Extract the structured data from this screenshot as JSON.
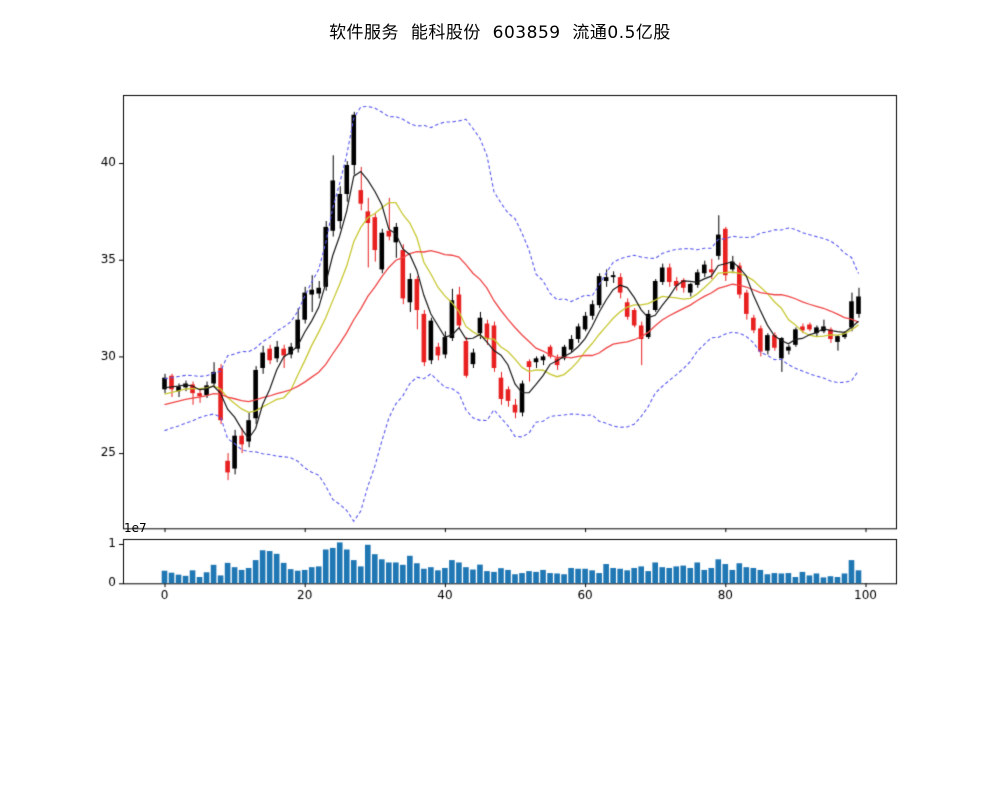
{
  "page": {
    "background": "#ffffff"
  },
  "chart_data": {
    "type": "candlestick+volume",
    "title": "软件服务  能科股份  603859  流通0.5亿股",
    "title_parts": {
      "industry": "软件服务",
      "name": "能科股份",
      "code": "603859",
      "float_shares": "流通0.5亿股"
    },
    "x_description": "trading-day index, 0 to 99",
    "ohlc": [
      [
        28.3,
        29.1,
        28.1,
        28.9
      ],
      [
        29.0,
        29.1,
        27.9,
        28.3
      ],
      [
        28.2,
        28.6,
        27.9,
        28.45
      ],
      [
        28.4,
        28.75,
        28.2,
        28.6
      ],
      [
        28.55,
        28.7,
        27.5,
        28.1
      ],
      [
        28.1,
        28.3,
        27.6,
        27.95
      ],
      [
        28.0,
        28.7,
        27.85,
        28.5
      ],
      [
        28.6,
        29.7,
        28.4,
        29.2
      ],
      [
        29.4,
        29.6,
        26.5,
        26.7
      ],
      [
        24.6,
        25.0,
        23.6,
        24.0
      ],
      [
        24.2,
        26.2,
        23.9,
        25.9
      ],
      [
        25.9,
        26.3,
        25.0,
        25.45
      ],
      [
        25.6,
        27.1,
        25.3,
        26.7
      ],
      [
        26.8,
        29.5,
        26.5,
        29.3
      ],
      [
        29.4,
        30.55,
        29.1,
        30.2
      ],
      [
        30.4,
        30.6,
        29.6,
        29.8
      ],
      [
        29.9,
        30.8,
        29.7,
        30.5
      ],
      [
        30.4,
        30.6,
        29.4,
        30.05
      ],
      [
        30.1,
        30.7,
        29.9,
        30.5
      ],
      [
        30.4,
        32.5,
        30.2,
        31.9
      ],
      [
        31.9,
        33.6,
        31.7,
        33.3
      ],
      [
        33.2,
        34.2,
        32.3,
        33.45
      ],
      [
        33.25,
        33.9,
        33.0,
        33.55
      ],
      [
        33.6,
        37.0,
        33.4,
        36.7
      ],
      [
        36.5,
        40.4,
        36.2,
        39.1
      ],
      [
        37.0,
        38.8,
        36.6,
        38.4
      ],
      [
        38.4,
        40.1,
        38.0,
        39.9
      ],
      [
        39.9,
        42.65,
        39.4,
        42.5
      ],
      [
        38.6,
        39.8,
        37.55,
        37.9
      ],
      [
        37.5,
        38.2,
        34.6,
        36.9
      ],
      [
        37.2,
        37.4,
        34.9,
        35.5
      ],
      [
        34.5,
        36.6,
        34.3,
        36.4
      ],
      [
        36.5,
        38.2,
        36.0,
        36.2
      ],
      [
        35.9,
        36.9,
        35.1,
        36.7
      ],
      [
        35.5,
        35.8,
        32.7,
        33.0
      ],
      [
        32.8,
        34.3,
        32.3,
        34.0
      ],
      [
        34.0,
        34.15,
        31.4,
        32.4
      ],
      [
        32.2,
        32.4,
        29.5,
        29.7
      ],
      [
        29.8,
        32.0,
        29.6,
        31.85
      ],
      [
        30.5,
        30.7,
        29.8,
        30.05
      ],
      [
        30.1,
        31.3,
        29.9,
        31.0
      ],
      [
        30.95,
        33.5,
        30.8,
        32.9
      ],
      [
        33.2,
        33.6,
        31.4,
        31.6
      ],
      [
        30.8,
        31.0,
        28.9,
        29.0
      ],
      [
        29.6,
        30.4,
        29.4,
        30.2
      ],
      [
        31.2,
        32.3,
        30.9,
        32.0
      ],
      [
        31.7,
        31.9,
        30.6,
        30.9
      ],
      [
        31.6,
        31.8,
        29.2,
        29.4
      ],
      [
        28.9,
        29.2,
        27.5,
        27.8
      ],
      [
        28.3,
        28.45,
        27.4,
        27.7
      ],
      [
        27.5,
        27.8,
        26.8,
        27.1
      ],
      [
        27.1,
        28.75,
        26.9,
        28.6
      ],
      [
        29.75,
        29.85,
        28.7,
        29.45
      ],
      [
        29.7,
        30.0,
        29.4,
        29.9
      ],
      [
        29.8,
        30.1,
        29.55,
        30.0
      ],
      [
        30.5,
        30.6,
        29.9,
        30.0
      ],
      [
        29.9,
        30.1,
        29.3,
        29.55
      ],
      [
        29.9,
        30.6,
        29.8,
        30.5
      ],
      [
        30.35,
        31.1,
        30.2,
        30.9
      ],
      [
        30.9,
        31.7,
        30.7,
        31.55
      ],
      [
        31.4,
        32.3,
        31.3,
        32.1
      ],
      [
        32.1,
        32.9,
        31.9,
        32.7
      ],
      [
        32.65,
        34.3,
        32.5,
        34.15
      ],
      [
        33.9,
        34.5,
        33.6,
        34.1
      ],
      [
        34.1,
        34.4,
        33.8,
        34.2
      ],
      [
        34.1,
        34.3,
        33.0,
        33.3
      ],
      [
        32.8,
        33.0,
        31.9,
        32.05
      ],
      [
        32.4,
        32.5,
        31.5,
        31.6
      ],
      [
        31.6,
        31.8,
        29.55,
        30.9
      ],
      [
        31.0,
        32.4,
        30.9,
        32.2
      ],
      [
        32.4,
        34.0,
        32.3,
        33.9
      ],
      [
        33.85,
        34.8,
        33.7,
        34.6
      ],
      [
        34.6,
        34.8,
        33.6,
        33.85
      ],
      [
        33.9,
        34.1,
        33.4,
        33.65
      ],
      [
        33.95,
        34.05,
        33.3,
        33.55
      ],
      [
        33.3,
        33.8,
        33.1,
        33.75
      ],
      [
        33.7,
        34.5,
        33.55,
        34.35
      ],
      [
        34.3,
        34.95,
        34.1,
        34.75
      ],
      [
        34.5,
        35.05,
        34.0,
        34.35
      ],
      [
        35.2,
        37.3,
        35.0,
        36.3
      ],
      [
        36.6,
        36.7,
        33.9,
        34.2
      ],
      [
        34.5,
        35.2,
        34.3,
        34.9
      ],
      [
        34.7,
        34.85,
        33.0,
        33.2
      ],
      [
        33.3,
        33.45,
        31.9,
        32.2
      ],
      [
        32.0,
        32.15,
        31.2,
        31.35
      ],
      [
        31.45,
        31.6,
        30.0,
        30.25
      ],
      [
        30.3,
        31.2,
        30.1,
        31.1
      ],
      [
        31.1,
        31.25,
        30.3,
        30.45
      ],
      [
        29.9,
        31.0,
        29.2,
        30.95
      ],
      [
        30.3,
        30.6,
        30.1,
        30.5
      ],
      [
        30.6,
        31.5,
        30.5,
        31.4
      ],
      [
        31.55,
        31.7,
        31.2,
        31.35
      ],
      [
        31.65,
        31.75,
        31.3,
        31.4
      ],
      [
        31.2,
        31.6,
        31.0,
        31.5
      ],
      [
        31.3,
        31.9,
        31.2,
        31.55
      ],
      [
        31.4,
        31.5,
        30.7,
        30.9
      ],
      [
        30.75,
        31.1,
        30.3,
        31.05
      ],
      [
        31.0,
        31.3,
        30.9,
        31.2
      ],
      [
        31.5,
        33.3,
        31.3,
        32.85
      ],
      [
        32.2,
        33.55,
        32.0,
        33.1
      ]
    ],
    "volume_unit_scale": 1000000,
    "volume": [
      3.2,
      2.7,
      2.2,
      1.9,
      3.3,
      1.6,
      2.8,
      4.7,
      2.0,
      5.2,
      4.1,
      3.4,
      3.9,
      5.9,
      8.4,
      8.2,
      7.5,
      5.2,
      3.6,
      3.2,
      3.4,
      4.1,
      4.3,
      8.6,
      9.0,
      10.4,
      8.6,
      5.9,
      4.3,
      9.8,
      7.4,
      6.1,
      5.3,
      5.3,
      4.7,
      7.0,
      5.1,
      3.7,
      4.1,
      3.3,
      3.9,
      5.9,
      5.3,
      4.1,
      3.5,
      4.75,
      3.1,
      2.9,
      3.85,
      3.4,
      2.3,
      2.6,
      3.1,
      2.9,
      3.4,
      2.6,
      2.5,
      2.3,
      3.9,
      3.7,
      3.7,
      3.3,
      2.6,
      4.9,
      3.9,
      3.7,
      3.3,
      3.9,
      4.3,
      3.1,
      5.3,
      4.1,
      3.9,
      4.3,
      4.5,
      3.9,
      5.3,
      3.4,
      3.9,
      6.1,
      4.9,
      3.4,
      5.1,
      4.1,
      3.9,
      3.4,
      2.3,
      2.6,
      2.5,
      2.6,
      1.6,
      2.9,
      2.0,
      2.5,
      1.5,
      1.8,
      1.6,
      2.5,
      5.9,
      3.3
    ],
    "pre_history_closes_estimated": [
      26.5,
      26.7,
      26.6,
      26.9,
      26.8,
      27.1,
      27.0,
      27.3,
      27.2,
      27.5,
      27.4,
      27.7,
      27.6,
      27.9,
      28.0,
      28.1,
      28.2,
      28.3,
      28.4
    ],
    "overlays": [
      {
        "name": "MA5 close",
        "window": 5,
        "style": "solid",
        "color_key": "ma_fast"
      },
      {
        "name": "MA10 close",
        "window": 10,
        "style": "solid",
        "color_key": "ma_mid"
      },
      {
        "name": "MA20 close",
        "window": 20,
        "style": "solid",
        "color_key": "ma_slow"
      },
      {
        "name": "Bollinger upper (20, +2sd)",
        "window": 20,
        "style": "dashed",
        "color_key": "band"
      },
      {
        "name": "Bollinger lower (20, -2sd)",
        "window": 20,
        "style": "dashed",
        "color_key": "band"
      }
    ],
    "axes": {
      "main": {
        "ylim": [
          21.11,
          43.52
        ],
        "yticks": [
          25,
          30,
          35,
          40
        ],
        "xticks": [
          0,
          20,
          40,
          60,
          80,
          100
        ],
        "xtick_labels_shown": false
      },
      "volume": {
        "ylim_scaled": [
          0,
          11.27
        ],
        "yticks_scaled": [
          0,
          10
        ],
        "ytick_labels": [
          "0",
          "1"
        ],
        "offset_label": "1e7",
        "xticks": [
          0,
          20,
          40,
          60,
          80,
          100
        ],
        "xtick_labels": [
          "0",
          "20",
          "40",
          "60",
          "80",
          "100"
        ]
      }
    },
    "colors": {
      "up_candle": "#000000",
      "down_candle": "#e82020",
      "ma_fast": "#1a1a1a",
      "ma_mid": "#c8c832",
      "ma_slow": "#f04545",
      "band": "#5a5af0",
      "volume_bar": "#1f77b4",
      "axis": "#000000",
      "text": "#000000",
      "background": "#ffffff"
    }
  }
}
